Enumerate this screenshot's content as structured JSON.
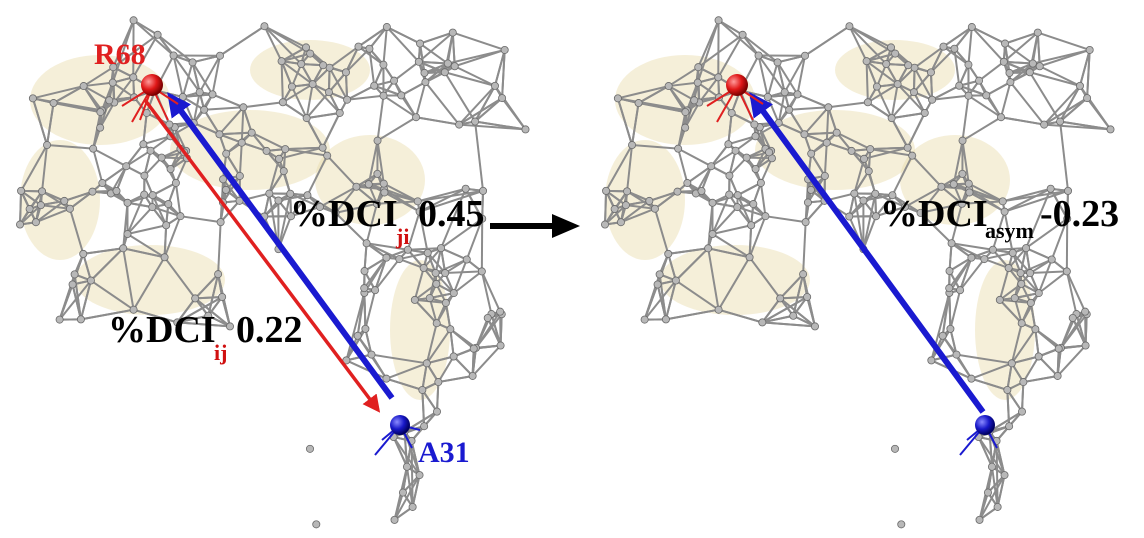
{
  "panels": {
    "left": {
      "residue_i": {
        "label": "R68",
        "color": "#e02020"
      },
      "residue_j": {
        "label": "A31",
        "color": "#1a1ad0"
      },
      "dci_ji": {
        "prefix": "%DCI",
        "subscript": "ji",
        "value": "0.45"
      },
      "dci_ij": {
        "prefix": "%DCI",
        "subscript": "ij",
        "value": "0.22"
      }
    },
    "right": {
      "dci_asym": {
        "prefix": "%DCI",
        "subscript": "asym",
        "value": "-0.23"
      }
    }
  },
  "colors": {
    "network_edge": "#8c8c8c",
    "network_node": "#b8b8b8",
    "surface": "#e8dcaa",
    "arrow_ij": "#e02020",
    "arrow_ji": "#1a1ad0",
    "transition_arrow": "#000000",
    "subscript": "#d01010"
  },
  "icons": {
    "transition": "right-arrow-icon"
  }
}
